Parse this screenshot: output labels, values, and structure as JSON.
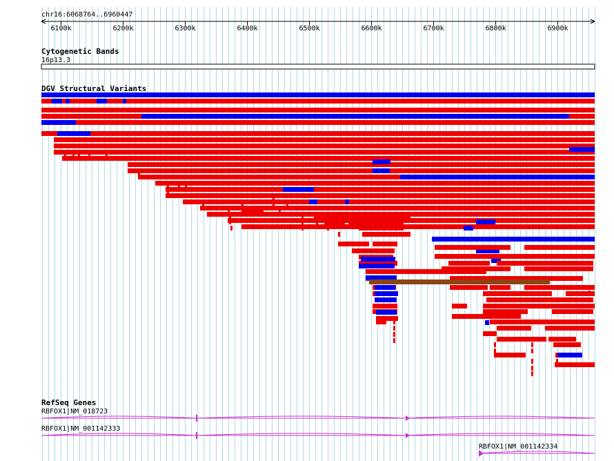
{
  "ruler": {
    "location": "chr16:6068764..6960447",
    "view_start": 6068764,
    "view_end": 6960447,
    "ticks": [
      {
        "pos": 6100000,
        "label": "6100k"
      },
      {
        "pos": 6200000,
        "label": "6200k"
      },
      {
        "pos": 6300000,
        "label": "6300k"
      },
      {
        "pos": 6400000,
        "label": "6400k"
      },
      {
        "pos": 6500000,
        "label": "6500k"
      },
      {
        "pos": 6600000,
        "label": "6600k"
      },
      {
        "pos": 6700000,
        "label": "6700k"
      },
      {
        "pos": 6800000,
        "label": "6800k"
      },
      {
        "pos": 6900000,
        "label": "6900k"
      }
    ]
  },
  "tracks": {
    "cytobands": {
      "title": "Cytogenetic Bands",
      "band": "16p13.3"
    },
    "dgv": {
      "title": "DGV Structural Variants",
      "colors": {
        "gain": "#0000ee",
        "loss": "#ee0000",
        "complex": "#8b4513"
      }
    },
    "refseq": {
      "title": "RefSeq Genes",
      "color": "#cc33cc",
      "genes": [
        {
          "label": "RBFOX1|NM_018723"
        },
        {
          "label": "RBFOX1|NM_001142333"
        },
        {
          "label": "RBFOX1|NM_001142334"
        }
      ]
    }
  },
  "colors": {
    "grid": "#b0d8e8",
    "ruler": "#000000"
  }
}
